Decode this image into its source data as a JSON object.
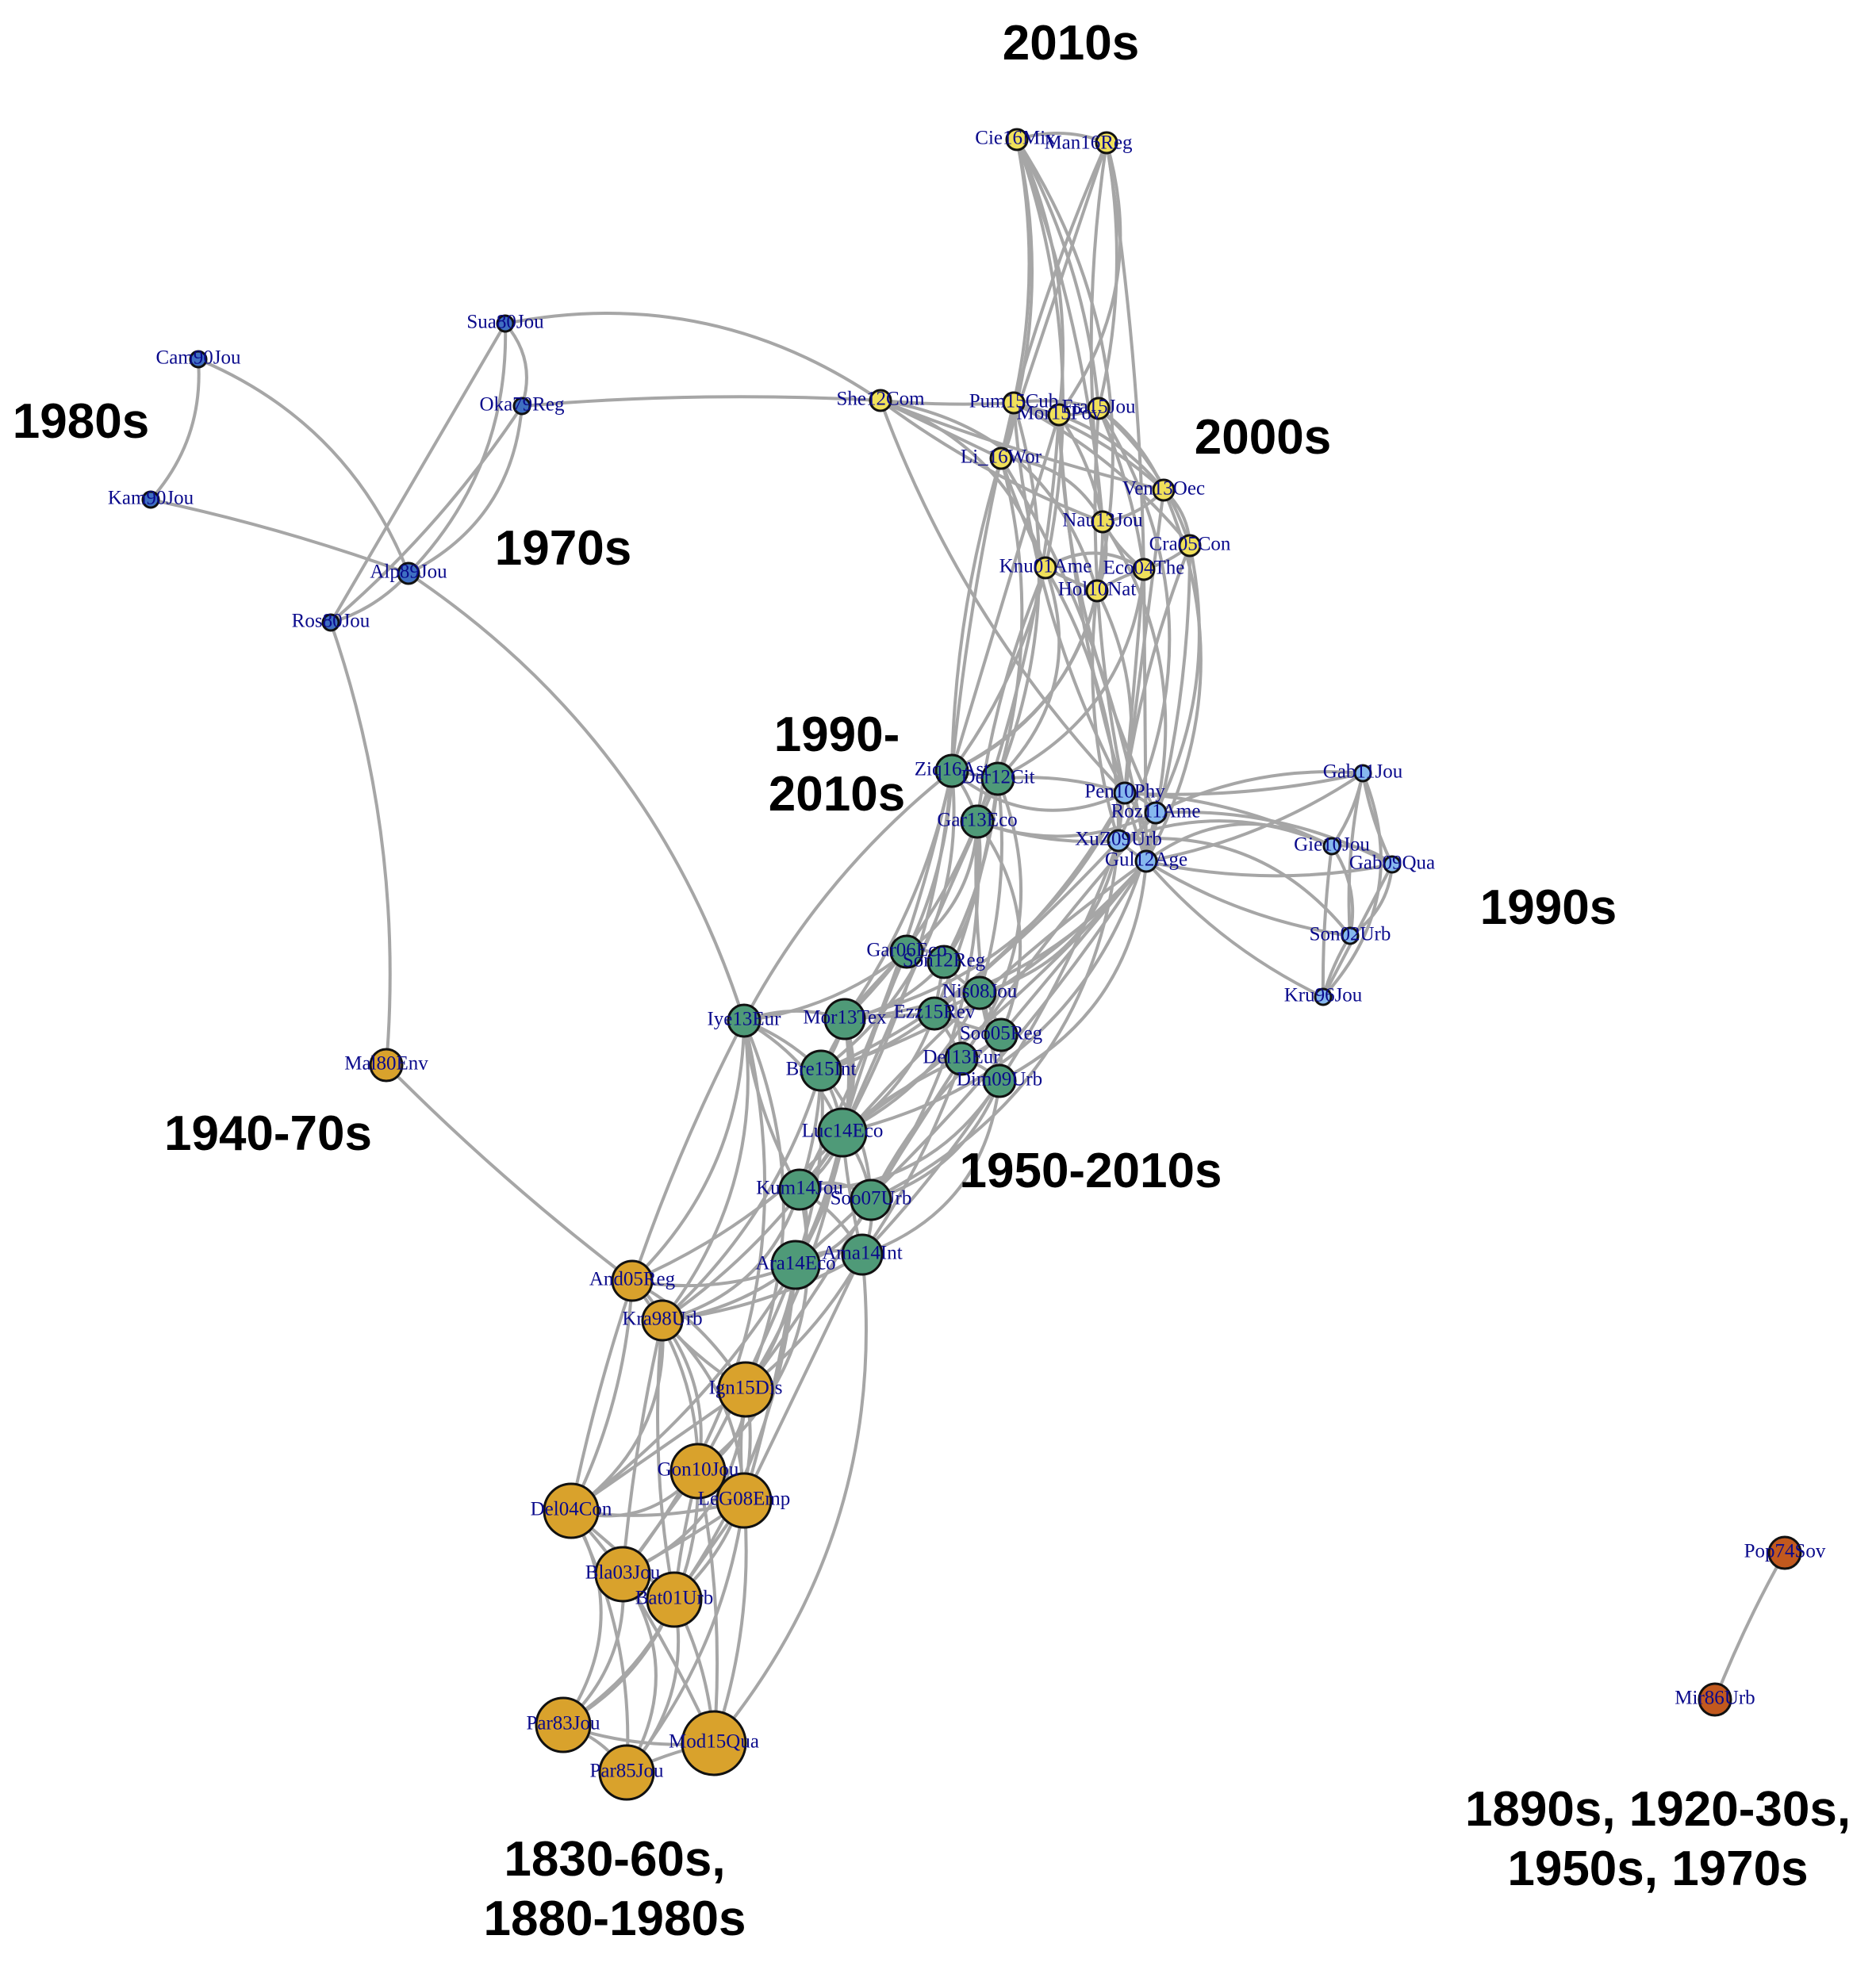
{
  "colors": {
    "edge": "#a6a6a6",
    "node_stroke": "#111111",
    "label_text": "#0a0a8c",
    "group_2010s": "#f0e05a",
    "group_1970s_1980s": "#3f6fc2",
    "group_1990s": "#86b8ee",
    "group_1950_2010s": "#4f9a78",
    "group_1830_1980s": "#d9a22c",
    "group_1890_1970s": "#c2591e"
  },
  "cluster_labels": {
    "c2010s": "2010s",
    "c2000s": "2000s",
    "c1980s": "1980s",
    "c1970s": "1970s",
    "c1990_2010s_line1": "1990-",
    "c1990_2010s_line2": "2010s",
    "c1990s": "1990s",
    "c1940_70s": "1940-70s",
    "c1950_2010s": "1950-2010s",
    "c1830_line1": "1830-60s,",
    "c1830_line2": "1880-1980s",
    "c1890_line1": "1890s, 1920-30s,",
    "c1890_line2": "1950s, 1970s"
  },
  "nodes": [
    {
      "id": "Cie16Mix",
      "group": "group_2010s",
      "size": "s"
    },
    {
      "id": "Man16Reg",
      "group": "group_2010s",
      "size": "s"
    },
    {
      "id": "She12Com",
      "group": "group_2010s",
      "size": "s"
    },
    {
      "id": "Pum15Cub",
      "group": "group_2010s",
      "size": "s"
    },
    {
      "id": "Mor15Pov",
      "group": "group_2010s",
      "size": "s"
    },
    {
      "id": "Fra15Jou",
      "group": "group_2010s",
      "size": "s"
    },
    {
      "id": "Li_16Wor",
      "group": "group_2010s",
      "size": "s"
    },
    {
      "id": "Ven13Oec",
      "group": "group_2010s",
      "size": "s"
    },
    {
      "id": "Nau13Jou",
      "group": "group_2010s",
      "size": "s"
    },
    {
      "id": "Cra05Con",
      "group": "group_2010s",
      "size": "s"
    },
    {
      "id": "Knu01Ame",
      "group": "group_2010s",
      "size": "s"
    },
    {
      "id": "Eco04The",
      "group": "group_2010s",
      "size": "s"
    },
    {
      "id": "Hol10Nat",
      "group": "group_2010s",
      "size": "s"
    },
    {
      "id": "Sua80Jou",
      "group": "group_1970s_1980s",
      "size": "xs"
    },
    {
      "id": "Cam90Jou",
      "group": "group_1970s_1980s",
      "size": "xs"
    },
    {
      "id": "Oka79Reg",
      "group": "group_1970s_1980s",
      "size": "xs"
    },
    {
      "id": "Kam90Jou",
      "group": "group_1970s_1980s",
      "size": "xs"
    },
    {
      "id": "Alp89Jou",
      "group": "group_1970s_1980s",
      "size": "s"
    },
    {
      "id": "Ros80Jou",
      "group": "group_1970s_1980s",
      "size": "xs"
    },
    {
      "id": "Pen10Phy",
      "group": "group_1990s",
      "size": "s"
    },
    {
      "id": "Roz11Ame",
      "group": "group_1990s",
      "size": "s"
    },
    {
      "id": "XuZ09Urb",
      "group": "group_1990s",
      "size": "s"
    },
    {
      "id": "Gul12Age",
      "group": "group_1990s",
      "size": "s"
    },
    {
      "id": "Gab11Jou",
      "group": "group_1990s",
      "size": "xs"
    },
    {
      "id": "Gie10Jou",
      "group": "group_1990s",
      "size": "xs"
    },
    {
      "id": "Gab09Qua",
      "group": "group_1990s",
      "size": "xs"
    },
    {
      "id": "Son02Urb",
      "group": "group_1990s",
      "size": "xs"
    },
    {
      "id": "Kru96Jou",
      "group": "group_1990s",
      "size": "xs"
    },
    {
      "id": "Ziq16Ast",
      "group": "group_1950_2010s",
      "size": "m"
    },
    {
      "id": "Der12Cit",
      "group": "group_1950_2010s",
      "size": "m"
    },
    {
      "id": "Gar13Eco",
      "group": "group_1950_2010s",
      "size": "m"
    },
    {
      "id": "Gar06Eco",
      "group": "group_1950_2010s",
      "size": "m"
    },
    {
      "id": "Son12Reg",
      "group": "group_1950_2010s",
      "size": "m"
    },
    {
      "id": "Nis08Jou",
      "group": "group_1950_2010s",
      "size": "m"
    },
    {
      "id": "Iye13Eur",
      "group": "group_1950_2010s",
      "size": "m"
    },
    {
      "id": "Mor13Tex",
      "group": "group_1950_2010s",
      "size": "l"
    },
    {
      "id": "Ezz15Rev",
      "group": "group_1950_2010s",
      "size": "m"
    },
    {
      "id": "Soo05Reg",
      "group": "group_1950_2010s",
      "size": "m"
    },
    {
      "id": "Bre15Int",
      "group": "group_1950_2010s",
      "size": "l"
    },
    {
      "id": "Del13Eur",
      "group": "group_1950_2010s",
      "size": "m"
    },
    {
      "id": "Dim09Urb",
      "group": "group_1950_2010s",
      "size": "m"
    },
    {
      "id": "Luc14Eco",
      "group": "group_1950_2010s",
      "size": "xl"
    },
    {
      "id": "Kum14Jou",
      "group": "group_1950_2010s",
      "size": "l"
    },
    {
      "id": "Soo07Urb",
      "group": "group_1950_2010s",
      "size": "l"
    },
    {
      "id": "Ara14Eco",
      "group": "group_1950_2010s",
      "size": "xl"
    },
    {
      "id": "Ama14Int",
      "group": "group_1950_2010s",
      "size": "l"
    },
    {
      "id": "Mal80Env",
      "group": "group_1830_1980s",
      "size": "m"
    },
    {
      "id": "And05Reg",
      "group": "group_1830_1980s",
      "size": "l"
    },
    {
      "id": "Kra98Urb",
      "group": "group_1830_1980s",
      "size": "l"
    },
    {
      "id": "Ign15Dis",
      "group": "group_1830_1980s",
      "size": "xxl"
    },
    {
      "id": "Gon10Jou",
      "group": "group_1830_1980s",
      "size": "xxl"
    },
    {
      "id": "LeG08Emp",
      "group": "group_1830_1980s",
      "size": "xxl"
    },
    {
      "id": "Del04Con",
      "group": "group_1830_1980s",
      "size": "xxl"
    },
    {
      "id": "Bla03Jou",
      "group": "group_1830_1980s",
      "size": "xxl"
    },
    {
      "id": "Bat01Urb",
      "group": "group_1830_1980s",
      "size": "xxl"
    },
    {
      "id": "Par83Jou",
      "group": "group_1830_1980s",
      "size": "xxl"
    },
    {
      "id": "Mod15Qua",
      "group": "group_1830_1980s",
      "size": "xxxl"
    },
    {
      "id": "Par85Jou",
      "group": "group_1830_1980s",
      "size": "xxl"
    },
    {
      "id": "Pop74Sov",
      "group": "group_1890_1970s",
      "size": "m"
    },
    {
      "id": "Mir86Urb",
      "group": "group_1890_1970s",
      "size": "m"
    }
  ],
  "edges": [
    [
      "Cam90Jou",
      "Kam90Jou"
    ],
    [
      "Cam90Jou",
      "Alp89Jou"
    ],
    [
      "Kam90Jou",
      "Alp89Jou"
    ],
    [
      "Sua80Jou",
      "Oka79Reg"
    ],
    [
      "Sua80Jou",
      "Alp89Jou"
    ],
    [
      "Sua80Jou",
      "Ros80Jou"
    ],
    [
      "Sua80Jou",
      "She12Com"
    ],
    [
      "Oka79Reg",
      "Alp89Jou"
    ],
    [
      "Oka79Reg",
      "Ros80Jou"
    ],
    [
      "Oka79Reg",
      "She12Com"
    ],
    [
      "Alp89Jou",
      "Ros80Jou"
    ],
    [
      "Alp89Jou",
      "Iye13Eur"
    ],
    [
      "Ros80Jou",
      "Mal80Env"
    ],
    [
      "Mal80Env",
      "And05Reg"
    ],
    [
      "Cie16Mix",
      "Man16Reg"
    ],
    [
      "Cie16Mix",
      "Pum15Cub"
    ],
    [
      "Cie16Mix",
      "Mor15Pov"
    ],
    [
      "Cie16Mix",
      "Fra15Jou"
    ],
    [
      "Cie16Mix",
      "Li_16Wor"
    ],
    [
      "Cie16Mix",
      "Nau13Jou"
    ],
    [
      "Cie16Mix",
      "Knu01Ame"
    ],
    [
      "Cie16Mix",
      "Hol10Nat"
    ],
    [
      "Man16Reg",
      "Pum15Cub"
    ],
    [
      "Man16Reg",
      "Mor15Pov"
    ],
    [
      "Man16Reg",
      "Fra15Jou"
    ],
    [
      "Man16Reg",
      "Li_16Wor"
    ],
    [
      "Man16Reg",
      "Nau13Jou"
    ],
    [
      "Man16Reg",
      "Eco04The"
    ],
    [
      "She12Com",
      "Pum15Cub"
    ],
    [
      "She12Com",
      "Li_16Wor"
    ],
    [
      "She12Com",
      "Knu01Ame"
    ],
    [
      "She12Com",
      "Hol10Nat"
    ],
    [
      "She12Com",
      "Nau13Jou"
    ],
    [
      "She12Com",
      "Pen10Phy"
    ],
    [
      "She12Com",
      "Ven13Oec"
    ],
    [
      "Pum15Cub",
      "Mor15Pov"
    ],
    [
      "Pum15Cub",
      "Fra15Jou"
    ],
    [
      "Pum15Cub",
      "Li_16Wor"
    ],
    [
      "Pum15Cub",
      "Ven13Oec"
    ],
    [
      "Pum15Cub",
      "Cra05Con"
    ],
    [
      "Pum15Cub",
      "Ziq16Ast"
    ],
    [
      "Pum15Cub",
      "Der12Cit"
    ],
    [
      "Pum15Cub",
      "Pen10Phy"
    ],
    [
      "Mor15Pov",
      "Fra15Jou"
    ],
    [
      "Mor15Pov",
      "Nau13Jou"
    ],
    [
      "Mor15Pov",
      "Ven13Oec"
    ],
    [
      "Mor15Pov",
      "Ziq16Ast"
    ],
    [
      "Mor15Pov",
      "Gar13Eco"
    ],
    [
      "Mor15Pov",
      "Roz11Ame"
    ],
    [
      "Mor15Pov",
      "Gul12Age"
    ],
    [
      "Fra15Jou",
      "Cra05Con"
    ],
    [
      "Fra15Jou",
      "Eco04The"
    ],
    [
      "Fra15Jou",
      "Ven13Oec"
    ],
    [
      "Fra15Jou",
      "Pen10Phy"
    ],
    [
      "Fra15Jou",
      "XuZ09Urb"
    ],
    [
      "Li_16Wor",
      "Knu01Ame"
    ],
    [
      "Li_16Wor",
      "Nau13Jou"
    ],
    [
      "Li_16Wor",
      "Ziq16Ast"
    ],
    [
      "Li_16Wor",
      "Der12Cit"
    ],
    [
      "Li_16Wor",
      "Gul12Age"
    ],
    [
      "Ven13Oec",
      "Nau13Jou"
    ],
    [
      "Ven13Oec",
      "Cra05Con"
    ],
    [
      "Ven13Oec",
      "Pen10Phy"
    ],
    [
      "Ven13Oec",
      "Gul12Age"
    ],
    [
      "Nau13Jou",
      "Eco04The"
    ],
    [
      "Nau13Jou",
      "Hol10Nat"
    ],
    [
      "Nau13Jou",
      "Ziq16Ast"
    ],
    [
      "Nau13Jou",
      "Roz11Ame"
    ],
    [
      "Cra05Con",
      "Eco04The"
    ],
    [
      "Cra05Con",
      "Gul12Age"
    ],
    [
      "Cra05Con",
      "XuZ09Urb"
    ],
    [
      "Cra05Con",
      "Roz11Ame"
    ],
    [
      "Knu01Ame",
      "Eco04The"
    ],
    [
      "Knu01Ame",
      "Hol10Nat"
    ],
    [
      "Knu01Ame",
      "Ziq16Ast"
    ],
    [
      "Knu01Ame",
      "Der12Cit"
    ],
    [
      "Knu01Ame",
      "Gar13Eco"
    ],
    [
      "Knu01Ame",
      "XuZ09Urb"
    ],
    [
      "Eco04The",
      "Hol10Nat"
    ],
    [
      "Eco04The",
      "Pen10Phy"
    ],
    [
      "Eco04The",
      "Gul12Age"
    ],
    [
      "Eco04The",
      "Der12Cit"
    ],
    [
      "Hol10Nat",
      "Ziq16Ast"
    ],
    [
      "Hol10Nat",
      "XuZ09Urb"
    ],
    [
      "Hol10Nat",
      "Pen10Phy"
    ],
    [
      "Pen10Phy",
      "Roz11Ame"
    ],
    [
      "Pen10Phy",
      "XuZ09Urb"
    ],
    [
      "Pen10Phy",
      "Gul12Age"
    ],
    [
      "Pen10Phy",
      "Gab11Jou"
    ],
    [
      "Pen10Phy",
      "Gie10Jou"
    ],
    [
      "Pen10Phy",
      "Ziq16Ast"
    ],
    [
      "Pen10Phy",
      "Der12Cit"
    ],
    [
      "Roz11Ame",
      "XuZ09Urb"
    ],
    [
      "Roz11Ame",
      "Gul12Age"
    ],
    [
      "Roz11Ame",
      "Gab11Jou"
    ],
    [
      "Roz11Ame",
      "Gab09Qua"
    ],
    [
      "Roz11Ame",
      "Gar13Eco"
    ],
    [
      "XuZ09Urb",
      "Gul12Age"
    ],
    [
      "XuZ09Urb",
      "Gie10Jou"
    ],
    [
      "XuZ09Urb",
      "Son02Urb"
    ],
    [
      "XuZ09Urb",
      "Gar13Eco"
    ],
    [
      "Gul12Age",
      "Gab11Jou"
    ],
    [
      "Gul12Age",
      "Gie10Jou"
    ],
    [
      "Gul12Age",
      "Gab09Qua"
    ],
    [
      "Gul12Age",
      "Son02Urb"
    ],
    [
      "Gul12Age",
      "Kru96Jou"
    ],
    [
      "Gab11Jou",
      "Gie10Jou"
    ],
    [
      "Gab11Jou",
      "Gab09Qua"
    ],
    [
      "Gab11Jou",
      "Son02Urb"
    ],
    [
      "Gab11Jou",
      "Kru96Jou"
    ],
    [
      "Gie10Jou",
      "Gab09Qua"
    ],
    [
      "Gie10Jou",
      "Son02Urb"
    ],
    [
      "Gie10Jou",
      "Kru96Jou"
    ],
    [
      "Gab09Qua",
      "Son02Urb"
    ],
    [
      "Gab09Qua",
      "Kru96Jou"
    ],
    [
      "Son02Urb",
      "Kru96Jou"
    ],
    [
      "Ziq16Ast",
      "Der12Cit"
    ],
    [
      "Ziq16Ast",
      "Gar13Eco"
    ],
    [
      "Ziq16Ast",
      "Gar06Eco"
    ],
    [
      "Ziq16Ast",
      "Iye13Eur"
    ],
    [
      "Ziq16Ast",
      "Mor13Tex"
    ],
    [
      "Ziq16Ast",
      "Bre15Int"
    ],
    [
      "Ziq16Ast",
      "Luc14Eco"
    ],
    [
      "Ziq16Ast",
      "Kum14Jou"
    ],
    [
      "Der12Cit",
      "Gar13Eco"
    ],
    [
      "Der12Cit",
      "Son12Reg"
    ],
    [
      "Der12Cit",
      "Nis08Jou"
    ],
    [
      "Der12Cit",
      "Ezz15Rev"
    ],
    [
      "Der12Cit",
      "Del13Eur"
    ],
    [
      "Der12Cit",
      "Luc14Eco"
    ],
    [
      "Gar13Eco",
      "Gar06Eco"
    ],
    [
      "Gar13Eco",
      "Son12Reg"
    ],
    [
      "Gar13Eco",
      "Mor13Tex"
    ],
    [
      "Gar13Eco",
      "Soo05Reg"
    ],
    [
      "Gar13Eco",
      "Dim09Urb"
    ],
    [
      "Gar13Eco",
      "Soo07Urb"
    ],
    [
      "Gul12Age",
      "Mor13Tex"
    ],
    [
      "Gul12Age",
      "Bre15Int"
    ],
    [
      "Gul12Age",
      "Luc14Eco"
    ],
    [
      "Gul12Age",
      "Kum14Jou"
    ],
    [
      "Gul12Age",
      "Ara14Eco"
    ],
    [
      "Gul12Age",
      "Soo05Reg"
    ],
    [
      "Gul12Age",
      "Dim09Urb"
    ],
    [
      "XuZ09Urb",
      "Nis08Jou"
    ],
    [
      "XuZ09Urb",
      "Ezz15Rev"
    ],
    [
      "XuZ09Urb",
      "Soo07Urb"
    ],
    [
      "XuZ09Urb",
      "Ama14Int"
    ],
    [
      "Roz11Ame",
      "Del13Eur"
    ],
    [
      "Roz11Ame",
      "Luc14Eco"
    ],
    [
      "Pen10Phy",
      "Bre15Int"
    ],
    [
      "Pen10Phy",
      "Mor13Tex"
    ],
    [
      "Gar06Eco",
      "Son12Reg"
    ],
    [
      "Gar06Eco",
      "Iye13Eur"
    ],
    [
      "Gar06Eco",
      "Mor13Tex"
    ],
    [
      "Gar06Eco",
      "Bre15Int"
    ],
    [
      "Gar06Eco",
      "Luc14Eco"
    ],
    [
      "Son12Reg",
      "Nis08Jou"
    ],
    [
      "Son12Reg",
      "Ezz15Rev"
    ],
    [
      "Son12Reg",
      "Mor13Tex"
    ],
    [
      "Son12Reg",
      "Del13Eur"
    ],
    [
      "Nis08Jou",
      "Ezz15Rev"
    ],
    [
      "Nis08Jou",
      "Soo05Reg"
    ],
    [
      "Nis08Jou",
      "Dim09Urb"
    ],
    [
      "Nis08Jou",
      "Luc14Eco"
    ],
    [
      "Iye13Eur",
      "Mor13Tex"
    ],
    [
      "Iye13Eur",
      "Bre15Int"
    ],
    [
      "Iye13Eur",
      "Luc14Eco"
    ],
    [
      "Iye13Eur",
      "Kum14Jou"
    ],
    [
      "Iye13Eur",
      "And05Reg"
    ],
    [
      "Iye13Eur",
      "Kra98Urb"
    ],
    [
      "Iye13Eur",
      "Ign15Dis"
    ],
    [
      "Mor13Tex",
      "Ezz15Rev"
    ],
    [
      "Mor13Tex",
      "Bre15Int"
    ],
    [
      "Mor13Tex",
      "Luc14Eco"
    ],
    [
      "Mor13Tex",
      "Kum14Jou"
    ],
    [
      "Mor13Tex",
      "Ara14Eco"
    ],
    [
      "Ezz15Rev",
      "Soo05Reg"
    ],
    [
      "Ezz15Rev",
      "Bre15Int"
    ],
    [
      "Ezz15Rev",
      "Del13Eur"
    ],
    [
      "Ezz15Rev",
      "Luc14Eco"
    ],
    [
      "Soo05Reg",
      "Del13Eur"
    ],
    [
      "Soo05Reg",
      "Dim09Urb"
    ],
    [
      "Soo05Reg",
      "Soo07Urb"
    ],
    [
      "Bre15Int",
      "Luc14Eco"
    ],
    [
      "Bre15Int",
      "Kum14Jou"
    ],
    [
      "Bre15Int",
      "Soo07Urb"
    ],
    [
      "Bre15Int",
      "Ara14Eco"
    ],
    [
      "Bre15Int",
      "Kra98Urb"
    ],
    [
      "Del13Eur",
      "Dim09Urb"
    ],
    [
      "Del13Eur",
      "Luc14Eco"
    ],
    [
      "Del13Eur",
      "Soo07Urb"
    ],
    [
      "Del13Eur",
      "Ama14Int"
    ],
    [
      "Dim09Urb",
      "Soo07Urb"
    ],
    [
      "Dim09Urb",
      "Ama14Int"
    ],
    [
      "Dim09Urb",
      "Kum14Jou"
    ],
    [
      "Luc14Eco",
      "Kum14Jou"
    ],
    [
      "Luc14Eco",
      "Soo07Urb"
    ],
    [
      "Luc14Eco",
      "Ara14Eco"
    ],
    [
      "Luc14Eco",
      "Ama14Int"
    ],
    [
      "Luc14Eco",
      "Ign15Dis"
    ],
    [
      "Kum14Jou",
      "Soo07Urb"
    ],
    [
      "Kum14Jou",
      "Ara14Eco"
    ],
    [
      "Kum14Jou",
      "Ama14Int"
    ],
    [
      "Kum14Jou",
      "Kra98Urb"
    ],
    [
      "Kum14Jou",
      "Gon10Jou"
    ],
    [
      "Soo07Urb",
      "Ara14Eco"
    ],
    [
      "Soo07Urb",
      "Ama14Int"
    ],
    [
      "Soo07Urb",
      "Ign15Dis"
    ],
    [
      "Ara14Eco",
      "Ama14Int"
    ],
    [
      "Ara14Eco",
      "And05Reg"
    ],
    [
      "Ara14Eco",
      "Kra98Urb"
    ],
    [
      "Ara14Eco",
      "Ign15Dis"
    ],
    [
      "Ara14Eco",
      "Gon10Jou"
    ],
    [
      "Ara14Eco",
      "LeG08Emp"
    ],
    [
      "Ara14Eco",
      "Del04Con"
    ],
    [
      "Ara14Eco",
      "Bat01Urb"
    ],
    [
      "Ama14Int",
      "Ign15Dis"
    ],
    [
      "Ama14Int",
      "LeG08Emp"
    ],
    [
      "Ama14Int",
      "Mod15Qua"
    ],
    [
      "Ama14Int",
      "Kra98Urb"
    ],
    [
      "Iye13Eur",
      "Del04Con"
    ],
    [
      "Iye13Eur",
      "Bla03Jou"
    ],
    [
      "Luc14Eco",
      "Kra98Urb"
    ],
    [
      "Luc14Eco",
      "And05Reg"
    ],
    [
      "And05Reg",
      "Kra98Urb"
    ],
    [
      "And05Reg",
      "Ign15Dis"
    ],
    [
      "And05Reg",
      "Del04Con"
    ],
    [
      "And05Reg",
      "Gon10Jou"
    ],
    [
      "Kra98Urb",
      "Ign15Dis"
    ],
    [
      "Kra98Urb",
      "Gon10Jou"
    ],
    [
      "Kra98Urb",
      "LeG08Emp"
    ],
    [
      "Kra98Urb",
      "Del04Con"
    ],
    [
      "Kra98Urb",
      "Bla03Jou"
    ],
    [
      "Kra98Urb",
      "Bat01Urb"
    ],
    [
      "Ign15Dis",
      "Gon10Jou"
    ],
    [
      "Ign15Dis",
      "LeG08Emp"
    ],
    [
      "Ign15Dis",
      "Del04Con"
    ],
    [
      "Ign15Dis",
      "Bla03Jou"
    ],
    [
      "Ign15Dis",
      "Bat01Urb"
    ],
    [
      "Gon10Jou",
      "LeG08Emp"
    ],
    [
      "Gon10Jou",
      "Del04Con"
    ],
    [
      "Gon10Jou",
      "Bla03Jou"
    ],
    [
      "Gon10Jou",
      "Bat01Urb"
    ],
    [
      "Gon10Jou",
      "Par83Jou"
    ],
    [
      "Gon10Jou",
      "Mod15Qua"
    ],
    [
      "LeG08Emp",
      "Del04Con"
    ],
    [
      "LeG08Emp",
      "Bla03Jou"
    ],
    [
      "LeG08Emp",
      "Bat01Urb"
    ],
    [
      "LeG08Emp",
      "Mod15Qua"
    ],
    [
      "LeG08Emp",
      "Par85Jou"
    ],
    [
      "Del04Con",
      "Bla03Jou"
    ],
    [
      "Del04Con",
      "Bat01Urb"
    ],
    [
      "Del04Con",
      "Par83Jou"
    ],
    [
      "Del04Con",
      "Par85Jou"
    ],
    [
      "Bla03Jou",
      "Bat01Urb"
    ],
    [
      "Bla03Jou",
      "Par83Jou"
    ],
    [
      "Bla03Jou",
      "Mod15Qua"
    ],
    [
      "Bla03Jou",
      "Par85Jou"
    ],
    [
      "Bat01Urb",
      "Par83Jou"
    ],
    [
      "Bat01Urb",
      "Mod15Qua"
    ],
    [
      "Bat01Urb",
      "Par85Jou"
    ],
    [
      "Par83Jou",
      "Mod15Qua"
    ],
    [
      "Par83Jou",
      "Par85Jou"
    ],
    [
      "Mod15Qua",
      "Par85Jou"
    ],
    [
      "Pop74Sov",
      "Mir86Urb"
    ]
  ]
}
